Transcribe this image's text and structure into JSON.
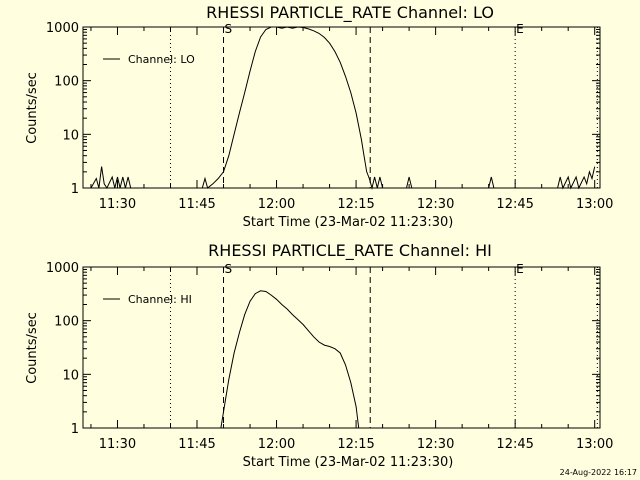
{
  "page": {
    "footer_stamp": "24-Aug-2022 16:17"
  },
  "chart_data": [
    {
      "type": "line",
      "title": "RHESSI PARTICLE_RATE Channel: LO",
      "xlabel": "Start Time (23-Mar-02 11:23:30)",
      "ylabel": "Counts/sec",
      "y_scale": "log",
      "ylim": [
        1,
        1000
      ],
      "xlim": [
        "11:23:30",
        "13:01:00"
      ],
      "x_ticks": [
        "11:30",
        "11:45",
        "12:00",
        "12:15",
        "12:30",
        "12:45",
        "13:00"
      ],
      "y_ticks": [
        "1",
        "10",
        "100",
        "1000"
      ],
      "legend": {
        "entry": "Channel: LO",
        "placement": "top-left"
      },
      "markers": [
        {
          "label": "S",
          "time": "11:50:00",
          "style": "dashed"
        },
        {
          "label": "E",
          "time": "12:45:00",
          "style": "dotted"
        }
      ],
      "reference_lines": [
        {
          "time": "11:40:00",
          "style": "dotted"
        },
        {
          "time": "12:17:40",
          "style": "dashed"
        },
        {
          "time": "13:00:30",
          "style": "dotted"
        }
      ],
      "series": [
        {
          "points": [
            [
              "11:25:00",
              1
            ],
            [
              "11:26:00",
              1.5
            ],
            [
              "11:26:30",
              1
            ],
            [
              "11:27:00",
              2.5
            ],
            [
              "11:27:30",
              1.2
            ],
            [
              "11:28:00",
              1
            ],
            [
              "11:29:00",
              1.6
            ],
            [
              "11:29:30",
              1
            ],
            [
              "11:30:00",
              1.6
            ],
            [
              "11:30:30",
              1
            ],
            [
              "11:31:00",
              1.6
            ],
            [
              "11:31:30",
              1
            ],
            [
              "11:32:00",
              1.6
            ],
            [
              "11:32:30",
              1
            ],
            [
              "11:46:00",
              1
            ],
            [
              "11:46:30",
              1.5
            ],
            [
              "11:47:00",
              1
            ],
            [
              "11:48:00",
              1.2
            ],
            [
              "11:49:00",
              1.5
            ],
            [
              "11:50:00",
              2
            ],
            [
              "11:51:00",
              4
            ],
            [
              "11:52:00",
              10
            ],
            [
              "11:53:00",
              25
            ],
            [
              "11:54:00",
              60
            ],
            [
              "11:55:00",
              150
            ],
            [
              "11:56:00",
              350
            ],
            [
              "11:57:00",
              650
            ],
            [
              "11:58:00",
              900
            ],
            [
              "11:59:00",
              1000
            ],
            [
              "12:00:00",
              1000
            ],
            [
              "12:01:00",
              950
            ],
            [
              "12:02:00",
              1000
            ],
            [
              "12:03:00",
              950
            ],
            [
              "12:04:00",
              1000
            ],
            [
              "12:05:00",
              980
            ],
            [
              "12:06:00",
              920
            ],
            [
              "12:07:00",
              850
            ],
            [
              "12:08:00",
              760
            ],
            [
              "12:09:00",
              640
            ],
            [
              "12:10:00",
              500
            ],
            [
              "12:11:00",
              350
            ],
            [
              "12:12:00",
              220
            ],
            [
              "12:13:00",
              120
            ],
            [
              "12:14:00",
              60
            ],
            [
              "12:15:00",
              25
            ],
            [
              "12:16:00",
              8
            ],
            [
              "12:16:30",
              4
            ],
            [
              "12:17:00",
              2
            ],
            [
              "12:17:30",
              1.5
            ],
            [
              "12:18:00",
              1
            ],
            [
              "12:18:30",
              1.6
            ],
            [
              "12:19:00",
              1
            ],
            [
              "12:19:30",
              1.6
            ],
            [
              "12:20:00",
              1
            ],
            [
              "12:24:30",
              1
            ],
            [
              "12:25:00",
              1.6
            ],
            [
              "12:25:30",
              1
            ],
            [
              "12:40:00",
              1
            ],
            [
              "12:40:30",
              1.6
            ],
            [
              "12:41:00",
              1
            ],
            [
              "12:53:00",
              1
            ],
            [
              "12:53:30",
              1.6
            ],
            [
              "12:54:00",
              1
            ],
            [
              "12:55:00",
              1.6
            ],
            [
              "12:55:30",
              1
            ],
            [
              "12:56:30",
              1.6
            ],
            [
              "12:57:00",
              1
            ],
            [
              "12:58:00",
              1.6
            ],
            [
              "12:58:30",
              1.2
            ],
            [
              "12:59:00",
              2
            ],
            [
              "12:59:30",
              1.5
            ],
            [
              "13:00:00",
              2.5
            ]
          ]
        }
      ]
    },
    {
      "type": "line",
      "title": "RHESSI PARTICLE_RATE Channel: HI",
      "xlabel": "Start Time (23-Mar-02 11:23:30)",
      "ylabel": "Counts/sec",
      "y_scale": "log",
      "ylim": [
        1,
        1000
      ],
      "xlim": [
        "11:23:30",
        "13:01:00"
      ],
      "x_ticks": [
        "11:30",
        "11:45",
        "12:00",
        "12:15",
        "12:30",
        "12:45",
        "13:00"
      ],
      "y_ticks": [
        "1",
        "10",
        "100",
        "1000"
      ],
      "legend": {
        "entry": "Channel: HI",
        "placement": "top-left"
      },
      "markers": [
        {
          "label": "S",
          "time": "11:50:00",
          "style": "dashed"
        },
        {
          "label": "E",
          "time": "12:45:00",
          "style": "dotted"
        }
      ],
      "reference_lines": [
        {
          "time": "11:40:00",
          "style": "dotted"
        },
        {
          "time": "12:17:40",
          "style": "dashed"
        },
        {
          "time": "13:00:30",
          "style": "dotted"
        }
      ],
      "series": [
        {
          "points": [
            [
              "11:49:30",
              1
            ],
            [
              "11:50:00",
              2
            ],
            [
              "11:51:00",
              8
            ],
            [
              "11:52:00",
              25
            ],
            [
              "11:53:00",
              60
            ],
            [
              "11:54:00",
              130
            ],
            [
              "11:55:00",
              230
            ],
            [
              "11:56:00",
              320
            ],
            [
              "11:57:00",
              360
            ],
            [
              "11:58:00",
              350
            ],
            [
              "11:59:00",
              300
            ],
            [
              "12:00:00",
              250
            ],
            [
              "12:01:00",
              200
            ],
            [
              "12:02:00",
              165
            ],
            [
              "12:03:00",
              130
            ],
            [
              "12:04:00",
              105
            ],
            [
              "12:05:00",
              85
            ],
            [
              "12:06:00",
              65
            ],
            [
              "12:07:00",
              50
            ],
            [
              "12:08:00",
              40
            ],
            [
              "12:09:00",
              35
            ],
            [
              "12:10:00",
              33
            ],
            [
              "12:11:00",
              30
            ],
            [
              "12:12:00",
              25
            ],
            [
              "12:13:00",
              15
            ],
            [
              "12:14:00",
              7
            ],
            [
              "12:15:00",
              2.5
            ],
            [
              "12:15:30",
              1
            ]
          ]
        }
      ]
    }
  ]
}
